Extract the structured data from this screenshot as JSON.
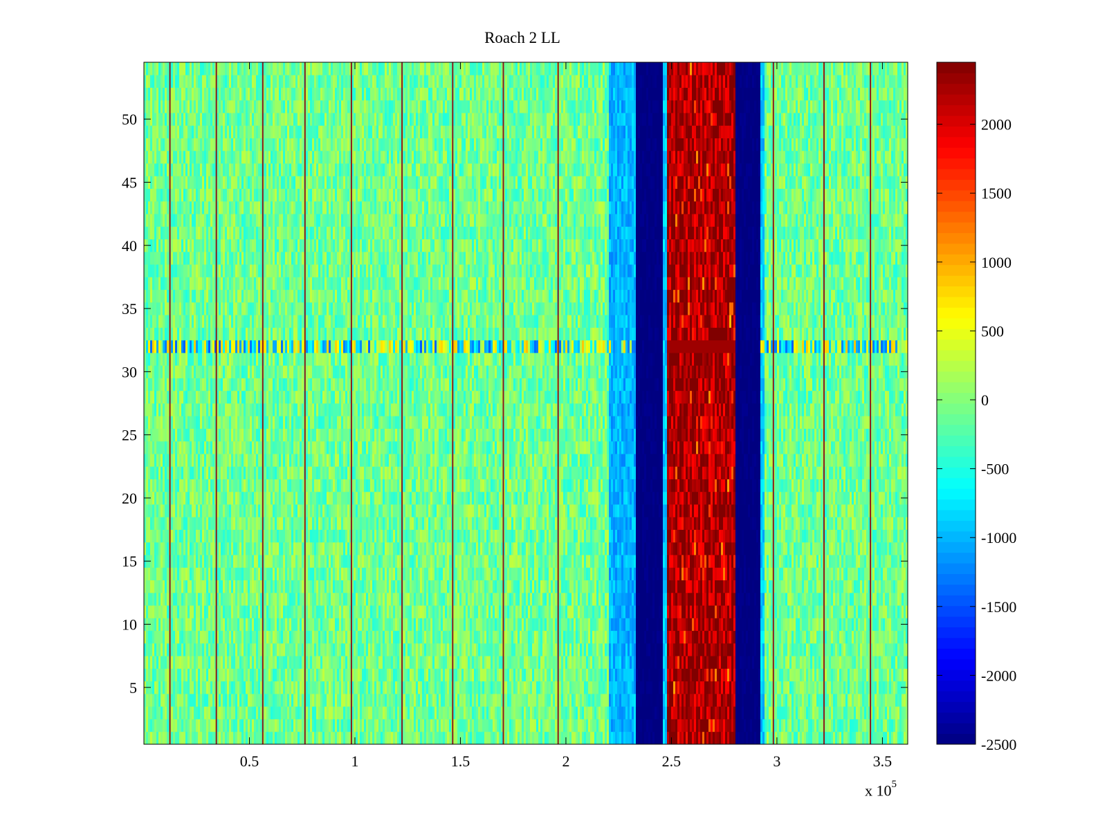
{
  "chart_data": {
    "type": "heatmap",
    "title": "Roach 2 LL",
    "xlabel": "",
    "ylabel": "",
    "x_multiplier": "x 10",
    "x_multiplier_exponent": "5",
    "xlim": [
      0,
      362000
    ],
    "ylim": [
      0.5,
      54.5
    ],
    "x_ticks": [
      0.5,
      1,
      1.5,
      2,
      2.5,
      3,
      3.5
    ],
    "x_tick_labels": [
      "0.5",
      "1",
      "1.5",
      "2",
      "2.5",
      "3",
      "3.5"
    ],
    "y_ticks": [
      5,
      10,
      15,
      20,
      25,
      30,
      35,
      40,
      45,
      50
    ],
    "y_tick_labels": [
      "5",
      "10",
      "15",
      "20",
      "25",
      "30",
      "35",
      "40",
      "45",
      "50"
    ],
    "rows": 54,
    "colormap": "jet",
    "clim": [
      -2500,
      2450
    ],
    "colorbar_ticks": [
      2000,
      1500,
      1000,
      500,
      0,
      -500,
      -1000,
      -1500,
      -2000,
      -2500
    ],
    "colorbar_tick_labels": [
      "2000",
      "1500",
      "1000",
      "500",
      "0",
      "-500",
      "-1000",
      "-1500",
      "-2000",
      "-2500"
    ],
    "background_value": -100,
    "regions": [
      {
        "x_start": 220500,
        "x_end": 233500,
        "value": -1000,
        "desc": "cyan/blue band"
      },
      {
        "x_start": 233500,
        "x_end": 245500,
        "value": -2500,
        "desc": "dark blue band"
      },
      {
        "x_start": 245500,
        "x_end": 248000,
        "value": -900,
        "desc": "cyan edge"
      },
      {
        "x_start": 248000,
        "x_end": 280000,
        "value": 2300,
        "desc": "dark red band"
      },
      {
        "x_start": 280000,
        "x_end": 292000,
        "value": -2500,
        "desc": "dark blue band"
      },
      {
        "x_start": 292000,
        "x_end": 294000,
        "value": -900,
        "desc": "cyan edge"
      }
    ],
    "anomalous_row": {
      "y": 32,
      "value": -1000
    },
    "spike_lines_x": [
      12000,
      34000,
      56000,
      76000,
      98000,
      122000,
      146000,
      170000,
      196000,
      298000,
      322000,
      344000
    ]
  }
}
